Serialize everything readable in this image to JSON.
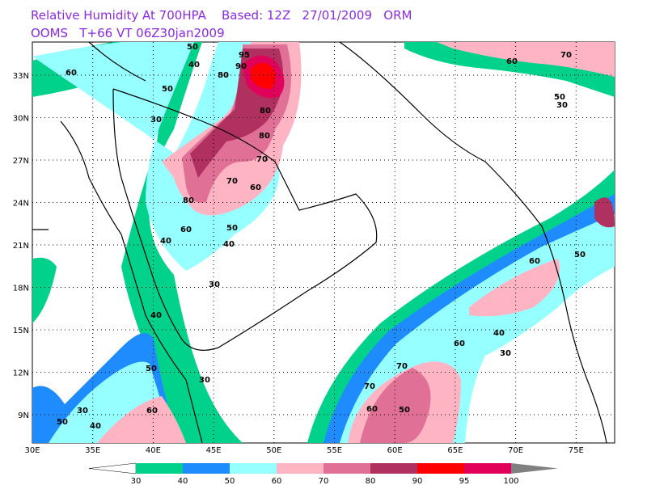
{
  "header": {
    "line1": "Relative Humidity At 700HPA    Based: 12Z   27/01/2009   ORM",
    "line2": "OOMS   T+66 VT 06Z30jan2009"
  },
  "map": {
    "lat_labels": [
      "9N",
      "12N",
      "15N",
      "18N",
      "21N",
      "24N",
      "27N",
      "30N",
      "33N"
    ],
    "lon_labels": [
      "30E",
      "35E",
      "40E",
      "45E",
      "50E",
      "55E",
      "60E",
      "65E",
      "70E",
      "75E"
    ],
    "contour_labels": [
      "60",
      "50",
      "40",
      "50",
      "30",
      "95",
      "90",
      "80",
      "80",
      "80",
      "70",
      "70",
      "60",
      "80",
      "60",
      "50",
      "40",
      "40",
      "30",
      "40",
      "50",
      "30",
      "60",
      "30",
      "50",
      "40",
      "70",
      "70",
      "60",
      "50",
      "60",
      "40",
      "30",
      "60",
      "50",
      "60",
      "70",
      "50",
      "30"
    ]
  },
  "colorbar": {
    "labels": [
      "30",
      "40",
      "50",
      "60",
      "70",
      "80",
      "90",
      "95",
      "100"
    ],
    "colors": [
      "#00d28c",
      "#1e8cff",
      "#96ffff",
      "#ffb4c3",
      "#e07095",
      "#b0305f",
      "#ff0000",
      "#e1005a"
    ]
  }
}
